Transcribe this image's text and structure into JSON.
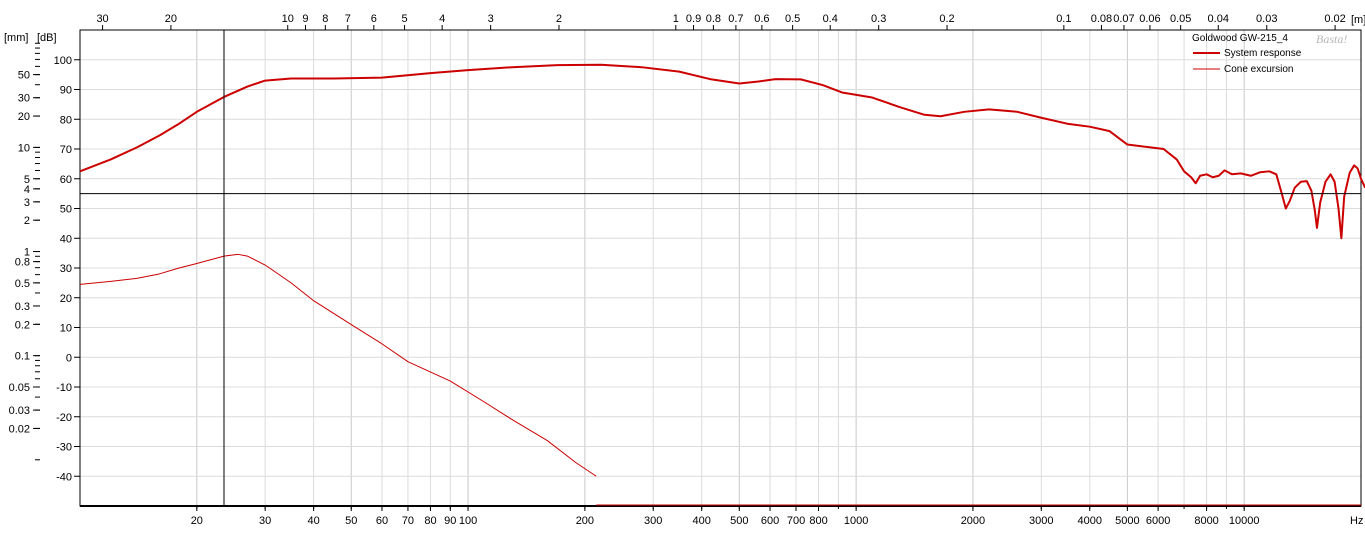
{
  "chart_data": {
    "type": "line",
    "title": "Goldwood GW-215_4",
    "watermark": "Basta!",
    "x_axis": {
      "label": "Hz",
      "scale": "log",
      "range": [
        10,
        20000
      ],
      "ticks": [
        {
          "v": 20,
          "t": "20"
        },
        {
          "v": 30,
          "t": "30"
        },
        {
          "v": 40,
          "t": "40"
        },
        {
          "v": 50,
          "t": "50"
        },
        {
          "v": 60,
          "t": "60"
        },
        {
          "v": 70,
          "t": "70"
        },
        {
          "v": 80,
          "t": "80"
        },
        {
          "v": 90,
          "t": "90"
        },
        {
          "v": 100,
          "t": "100"
        },
        {
          "v": 200,
          "t": "200"
        },
        {
          "v": 300,
          "t": "300"
        },
        {
          "v": 400,
          "t": "400"
        },
        {
          "v": 500,
          "t": "500"
        },
        {
          "v": 600,
          "t": "600"
        },
        {
          "v": 700,
          "t": "700"
        },
        {
          "v": 800,
          "t": "800"
        },
        {
          "v": 1000,
          "t": "1000"
        },
        {
          "v": 2000,
          "t": "2000"
        },
        {
          "v": 3000,
          "t": "3000"
        },
        {
          "v": 4000,
          "t": "4000"
        },
        {
          "v": 5000,
          "t": "5000"
        },
        {
          "v": 6000,
          "t": "6000"
        },
        {
          "v": 8000,
          "t": "8000"
        },
        {
          "v": 10000,
          "t": "10000"
        }
      ]
    },
    "top_axis": {
      "unit": "[m]",
      "ticks": [
        {
          "v": 30,
          "t": "30"
        },
        {
          "v": 20,
          "t": "20"
        },
        {
          "v": 10,
          "t": "10"
        },
        {
          "v": 9,
          "t": "9"
        },
        {
          "v": 8,
          "t": "8"
        },
        {
          "v": 7,
          "t": "7"
        },
        {
          "v": 6,
          "t": "6"
        },
        {
          "v": 5,
          "t": "5"
        },
        {
          "v": 4,
          "t": "4"
        },
        {
          "v": 3,
          "t": "3"
        },
        {
          "v": 2,
          "t": "2"
        },
        {
          "v": 1,
          "t": "1"
        },
        {
          "v": 0.9,
          "t": "0.9"
        },
        {
          "v": 0.8,
          "t": "0.8"
        },
        {
          "v": 0.7,
          "t": "0.7"
        },
        {
          "v": 0.6,
          "t": "0.6"
        },
        {
          "v": 0.5,
          "t": "0.5"
        },
        {
          "v": 0.4,
          "t": "0.4"
        },
        {
          "v": 0.3,
          "t": "0.3"
        },
        {
          "v": 0.2,
          "t": "0.2"
        },
        {
          "v": 0.1,
          "t": "0.1"
        },
        {
          "v": 0.08,
          "t": "0.08"
        },
        {
          "v": 0.07,
          "t": "0.07"
        },
        {
          "v": 0.06,
          "t": "0.06"
        },
        {
          "v": 0.05,
          "t": "0.05"
        },
        {
          "v": 0.04,
          "t": "0.04"
        },
        {
          "v": 0.03,
          "t": "0.03"
        },
        {
          "v": 0.02,
          "t": "0.02"
        }
      ]
    },
    "y_axis_db": {
      "unit": "[dB]",
      "range": [
        -50,
        110
      ],
      "ticks": [
        100,
        90,
        80,
        70,
        60,
        50,
        40,
        30,
        20,
        10,
        0,
        -10,
        -20,
        -30,
        -40
      ]
    },
    "y_axis_mm": {
      "unit": "[mm]",
      "scale": "log",
      "ticks": [
        {
          "v": 50,
          "t": "50"
        },
        {
          "v": 30,
          "t": "30"
        },
        {
          "v": 20,
          "t": "20"
        },
        {
          "v": 10,
          "t": "10"
        },
        {
          "v": 5,
          "t": "5"
        },
        {
          "v": 4,
          "t": "4"
        },
        {
          "v": 3,
          "t": "3"
        },
        {
          "v": 2,
          "t": "2"
        },
        {
          "v": 1,
          "t": "1"
        },
        {
          "v": 0.8,
          "t": "0.8"
        },
        {
          "v": 0.5,
          "t": "0.5"
        },
        {
          "v": 0.3,
          "t": "0.3"
        },
        {
          "v": 0.2,
          "t": "0.2"
        },
        {
          "v": 0.1,
          "t": "0.1"
        },
        {
          "v": 0.05,
          "t": "0.05"
        },
        {
          "v": 0.03,
          "t": "0.03"
        },
        {
          "v": 0.02,
          "t": "0.02"
        }
      ]
    },
    "cursor": {
      "x_hz": 23.5,
      "y_db": 55
    },
    "grid": true,
    "legend_position": "top-right",
    "series": [
      {
        "name": "System response",
        "color": "#cc0000",
        "points": [
          [
            10,
            62.5
          ],
          [
            12,
            66.5
          ],
          [
            14,
            70.5
          ],
          [
            16,
            74.5
          ],
          [
            18,
            78.5
          ],
          [
            20,
            82.5
          ],
          [
            23.5,
            87.5
          ],
          [
            27,
            91
          ],
          [
            30,
            93
          ],
          [
            35,
            93.7
          ],
          [
            45,
            93.7
          ],
          [
            60,
            94
          ],
          [
            80,
            95.5
          ],
          [
            100,
            96.5
          ],
          [
            130,
            97.5
          ],
          [
            170,
            98.2
          ],
          [
            220,
            98.3
          ],
          [
            280,
            97.5
          ],
          [
            350,
            96
          ],
          [
            420,
            93.5
          ],
          [
            500,
            92
          ],
          [
            560,
            92.7
          ],
          [
            620,
            93.5
          ],
          [
            720,
            93.4
          ],
          [
            820,
            91.5
          ],
          [
            920,
            89
          ],
          [
            1100,
            87.3
          ],
          [
            1300,
            84
          ],
          [
            1500,
            81.5
          ],
          [
            1650,
            81
          ],
          [
            1900,
            82.5
          ],
          [
            2200,
            83.3
          ],
          [
            2600,
            82.5
          ],
          [
            3000,
            80.5
          ],
          [
            3500,
            78.5
          ],
          [
            4000,
            77.5
          ],
          [
            4500,
            76
          ],
          [
            5000,
            71.5
          ],
          [
            5600,
            70.7
          ],
          [
            6200,
            70
          ],
          [
            6700,
            66.5
          ],
          [
            7000,
            62.5
          ],
          [
            7300,
            60.5
          ],
          [
            7500,
            58.5
          ],
          [
            7700,
            61
          ],
          [
            8000,
            61.5
          ],
          [
            8300,
            60.5
          ],
          [
            8600,
            61
          ],
          [
            8900,
            62.8
          ],
          [
            9300,
            61.5
          ],
          [
            9800,
            61.8
          ],
          [
            10400,
            61
          ],
          [
            11000,
            62.2
          ],
          [
            11600,
            62.5
          ],
          [
            12100,
            61.5
          ],
          [
            12500,
            55
          ],
          [
            12800,
            50
          ],
          [
            13100,
            52.5
          ],
          [
            13500,
            57
          ],
          [
            14000,
            59
          ],
          [
            14500,
            59.2
          ],
          [
            14900,
            56
          ],
          [
            15200,
            49.5
          ],
          [
            15400,
            43.5
          ],
          [
            15700,
            52
          ],
          [
            16200,
            59
          ],
          [
            16700,
            61.5
          ],
          [
            17100,
            59
          ],
          [
            17500,
            50
          ],
          [
            17800,
            40
          ],
          [
            18100,
            54
          ],
          [
            18700,
            62
          ],
          [
            19200,
            64.5
          ],
          [
            19600,
            63.5
          ],
          [
            20000,
            60
          ],
          [
            20500,
            57
          ]
        ]
      },
      {
        "name": "Cone excursion",
        "color": "#cc0000",
        "points": [
          [
            10,
            24.5
          ],
          [
            12,
            25.5
          ],
          [
            14,
            26.5
          ],
          [
            16,
            28
          ],
          [
            18,
            30
          ],
          [
            20,
            31.5
          ],
          [
            23.5,
            34
          ],
          [
            25.5,
            34.6
          ],
          [
            27,
            34
          ],
          [
            30,
            31
          ],
          [
            35,
            25
          ],
          [
            40,
            19
          ],
          [
            50,
            11
          ],
          [
            60,
            4.5
          ],
          [
            70,
            -1.5
          ],
          [
            90,
            -8
          ],
          [
            110,
            -15
          ],
          [
            130,
            -21
          ],
          [
            160,
            -28
          ],
          [
            190,
            -35.5
          ],
          [
            214,
            -40
          ]
        ]
      }
    ]
  },
  "legend": {
    "title": "Goldwood GW-215_4",
    "items": [
      "System response",
      "Cone excursion"
    ]
  }
}
